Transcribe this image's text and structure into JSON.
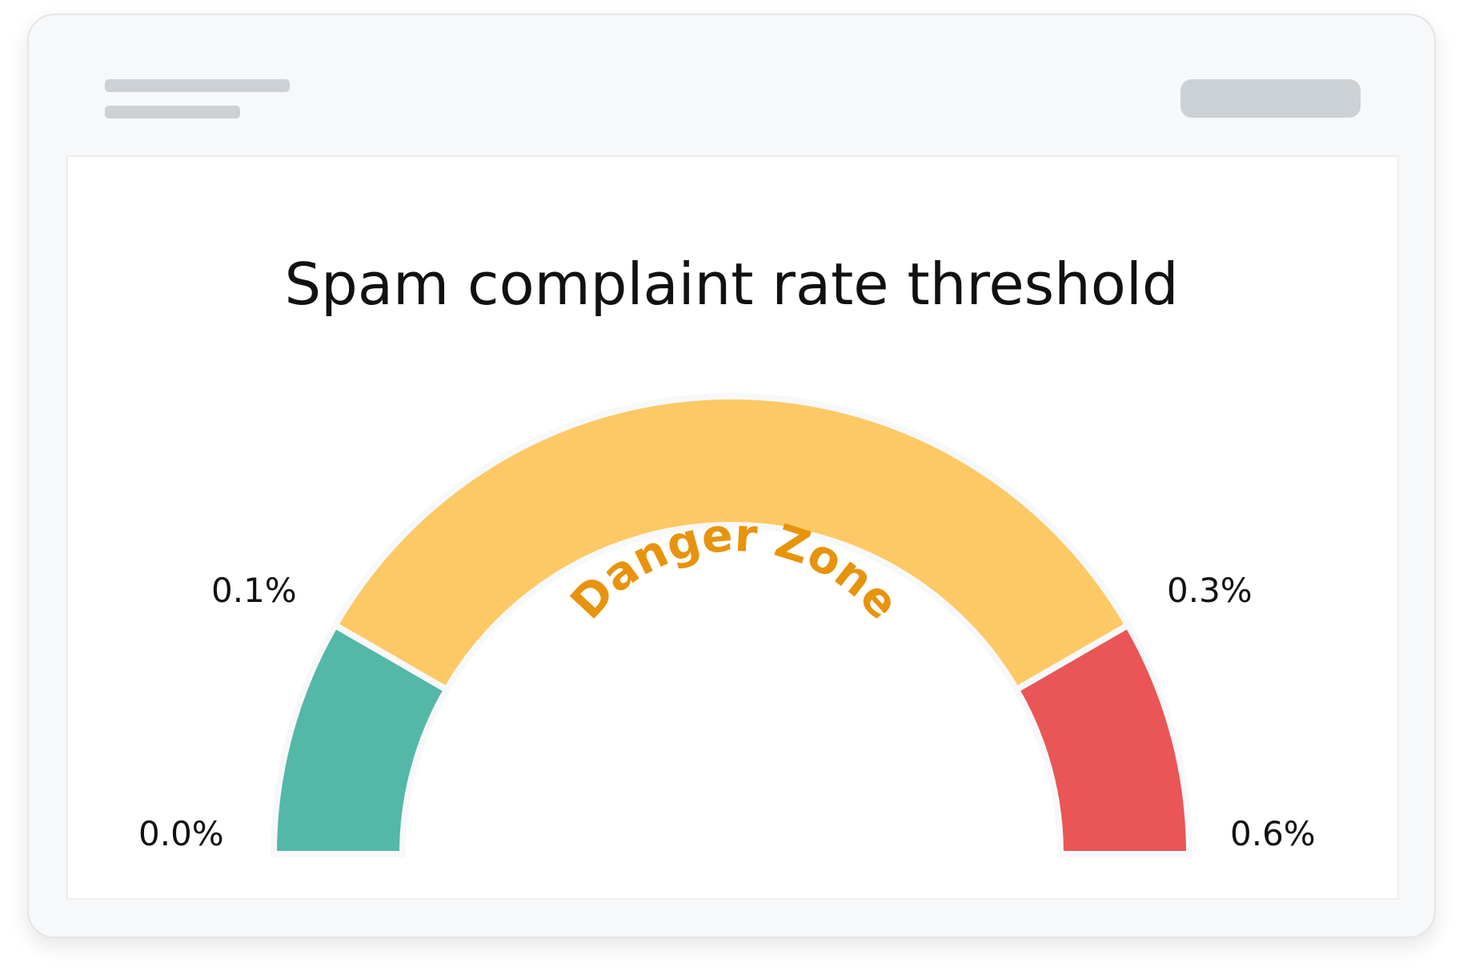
{
  "window": {
    "header_placeholder_lines": 2,
    "header_placeholder_button": true
  },
  "chart_data": {
    "type": "gauge",
    "title": "Spam complaint rate threshold",
    "unit": "%",
    "range": [
      0.0,
      0.6
    ],
    "segments": [
      {
        "from": 0.0,
        "to": 0.1,
        "color": "#53b8a7"
      },
      {
        "from": 0.1,
        "to": 0.3,
        "color": "#fcc964",
        "label": "Danger Zone",
        "label_color": "#e8930c"
      },
      {
        "from": 0.3,
        "to": 0.6,
        "color": "#ea5556"
      }
    ],
    "tick_labels": {
      "t0": "0.0%",
      "t1": "0.1%",
      "t2": "0.3%",
      "t3": "0.6%"
    },
    "zone_label": "Danger Zone"
  }
}
